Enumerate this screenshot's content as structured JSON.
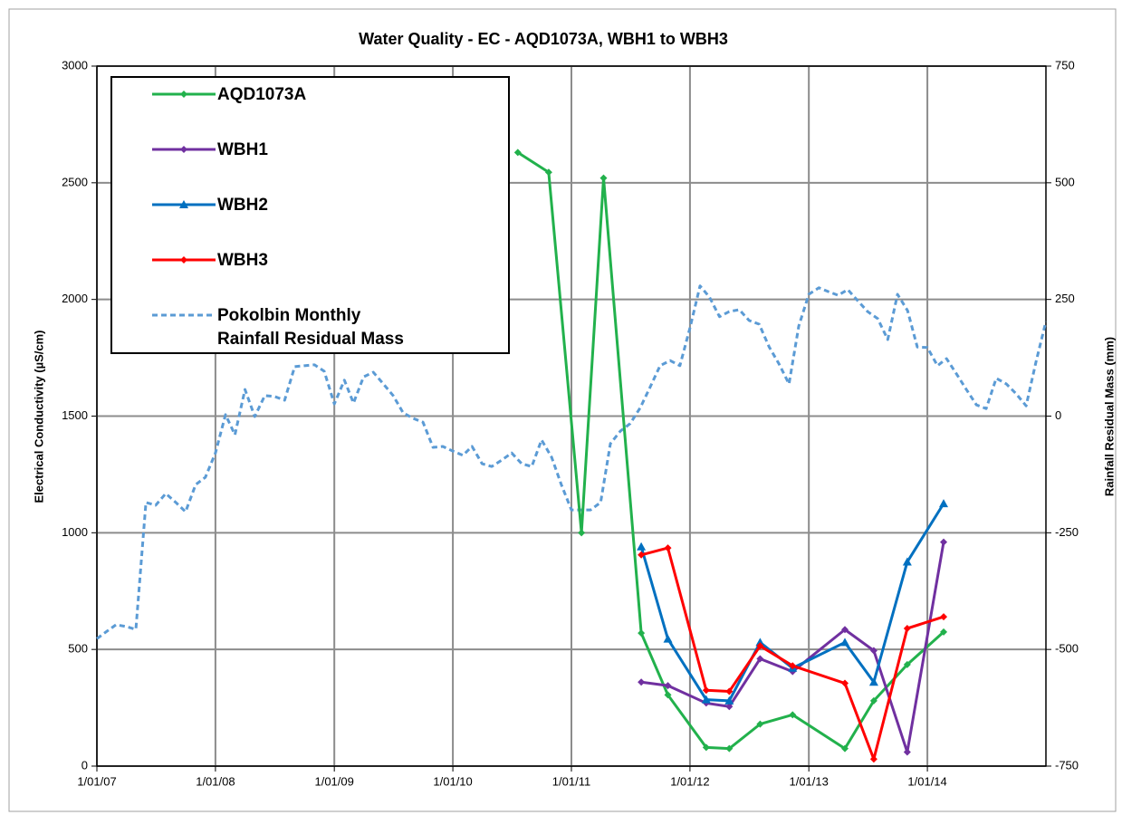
{
  "chart_data": {
    "type": "line",
    "title": "Water Quality - EC - AQD1073A, WBH1 to WBH3",
    "y_label": "Electrical Conductivity (µS/cm)",
    "y2_label": "Rainfall Residual Mass (mm)",
    "xlim": [
      "2007-01-01",
      "2015-01-01"
    ],
    "xticks": [
      {
        "value": "2007-01-01",
        "label": "1/01/07"
      },
      {
        "value": "2008-01-01",
        "label": "1/01/08"
      },
      {
        "value": "2009-01-01",
        "label": "1/01/09"
      },
      {
        "value": "2010-01-01",
        "label": "1/01/10"
      },
      {
        "value": "2011-01-01",
        "label": "1/01/11"
      },
      {
        "value": "2012-01-01",
        "label": "1/01/12"
      },
      {
        "value": "2013-01-01",
        "label": "1/01/13"
      },
      {
        "value": "2014-01-01",
        "label": "1/01/14"
      }
    ],
    "ylim": [
      0,
      3000
    ],
    "yticks": [
      0,
      500,
      1000,
      1500,
      2000,
      2500,
      3000
    ],
    "y2lim": [
      -750,
      750
    ],
    "y2ticks": [
      -750,
      -500,
      -250,
      0,
      250,
      500,
      750
    ],
    "grid": true,
    "legend": "upper left",
    "series": [
      {
        "name": "AQD1073A",
        "color": "#22b14c",
        "marker": "diamond",
        "x": [
          "2010-07-20",
          "2010-10-23",
          "2011-02-01",
          "2011-04-10",
          "2011-08-04",
          "2011-10-25",
          "2012-02-20",
          "2012-05-01",
          "2012-08-04",
          "2012-11-12",
          "2013-04-22",
          "2013-07-20",
          "2013-10-31",
          "2014-02-20"
        ],
        "values": [
          2630,
          2545,
          1000,
          2520,
          570,
          305,
          80,
          75,
          180,
          220,
          75,
          280,
          435,
          575
        ]
      },
      {
        "name": "WBH1",
        "color": "#7030a0",
        "marker": "diamond",
        "x": [
          "2011-08-04",
          "2011-10-25",
          "2012-02-20",
          "2012-05-01",
          "2012-08-04",
          "2012-11-12",
          "2013-04-22",
          "2013-07-20",
          "2013-10-31",
          "2014-02-20"
        ],
        "values": [
          360,
          345,
          270,
          255,
          460,
          405,
          585,
          495,
          60,
          960
        ]
      },
      {
        "name": "WBH2",
        "color": "#0070c0",
        "marker": "triangle",
        "x": [
          "2011-08-04",
          "2011-10-25",
          "2012-02-20",
          "2012-05-01",
          "2012-08-04",
          "2012-11-12",
          "2013-04-22",
          "2013-07-20",
          "2013-10-31",
          "2014-02-20"
        ],
        "values": [
          940,
          545,
          285,
          280,
          530,
          420,
          530,
          360,
          875,
          1125
        ]
      },
      {
        "name": "WBH3",
        "color": "#ff0000",
        "marker": "diamond",
        "x": [
          "2011-08-04",
          "2011-10-25",
          "2012-02-20",
          "2012-05-01",
          "2012-08-04",
          "2012-11-12",
          "2013-04-22",
          "2013-07-20",
          "2013-10-31",
          "2014-02-20"
        ],
        "values": [
          905,
          935,
          325,
          320,
          515,
          430,
          355,
          30,
          590,
          640
        ]
      },
      {
        "name": "Pokolbin Monthly Rainfall Residual Mass",
        "color": "#5b9bd5",
        "marker": "none",
        "dashed": true,
        "axis": "y2",
        "x": [
          "2007-01-01",
          "2007-02-01",
          "2007-03-01",
          "2007-04-01",
          "2007-05-01",
          "2007-06-01",
          "2007-07-01",
          "2007-08-01",
          "2007-09-01",
          "2007-10-01",
          "2007-11-01",
          "2007-12-01",
          "2008-01-01",
          "2008-02-01",
          "2008-03-01",
          "2008-04-01",
          "2008-05-01",
          "2008-06-01",
          "2008-07-01",
          "2008-08-01",
          "2008-09-01",
          "2008-10-01",
          "2008-11-01",
          "2008-12-01",
          "2009-01-01",
          "2009-02-01",
          "2009-03-01",
          "2009-04-01",
          "2009-05-01",
          "2009-06-01",
          "2009-07-01",
          "2009-08-01",
          "2009-09-01",
          "2009-10-01",
          "2009-11-01",
          "2009-12-01",
          "2010-01-01",
          "2010-02-01",
          "2010-03-01",
          "2010-04-01",
          "2010-05-01",
          "2010-06-01",
          "2010-07-01",
          "2010-08-01",
          "2010-09-01",
          "2010-10-01",
          "2010-11-01",
          "2010-12-01",
          "2011-01-01",
          "2011-02-01",
          "2011-03-01",
          "2011-04-01",
          "2011-05-01",
          "2011-06-01",
          "2011-07-01",
          "2011-08-01",
          "2011-09-01",
          "2011-10-01",
          "2011-11-01",
          "2011-12-01",
          "2012-01-01",
          "2012-02-01",
          "2012-03-01",
          "2012-04-01",
          "2012-05-01",
          "2012-06-01",
          "2012-07-01",
          "2012-08-01",
          "2012-09-01",
          "2012-10-01",
          "2012-11-01",
          "2012-12-01",
          "2013-01-01",
          "2013-02-01",
          "2013-03-01",
          "2013-04-01",
          "2013-05-01",
          "2013-06-01",
          "2013-07-01",
          "2013-08-01",
          "2013-09-01",
          "2013-10-01",
          "2013-11-01",
          "2013-12-01",
          "2014-01-01",
          "2014-02-01",
          "2014-03-01",
          "2014-04-01",
          "2014-05-01",
          "2014-06-01",
          "2014-07-01",
          "2014-08-01",
          "2014-09-01",
          "2014-10-01",
          "2014-11-01",
          "2014-12-01",
          "2015-01-01"
        ],
        "values": [
          -477,
          -461,
          -447,
          -451,
          -457,
          -185,
          -191,
          -166,
          -185,
          -205,
          -147,
          -131,
          -79,
          3,
          -40,
          57,
          -1,
          44,
          42,
          34,
          106,
          108,
          110,
          96,
          26,
          77,
          28,
          84,
          94,
          69,
          44,
          7,
          -5,
          -13,
          -67,
          -65,
          -75,
          -84,
          -65,
          -102,
          -108,
          -94,
          -79,
          -102,
          -108,
          -51,
          -88,
          -147,
          -201,
          -201,
          -201,
          -185,
          -59,
          -32,
          -16,
          18,
          63,
          108,
          119,
          108,
          189,
          279,
          255,
          213,
          224,
          228,
          205,
          197,
          148,
          112,
          69,
          193,
          261,
          275,
          267,
          259,
          271,
          247,
          224,
          209,
          164,
          261,
          226,
          148,
          147,
          108,
          123,
          90,
          57,
          24,
          16,
          81,
          69,
          48,
          22,
          115,
          203
        ]
      }
    ]
  }
}
